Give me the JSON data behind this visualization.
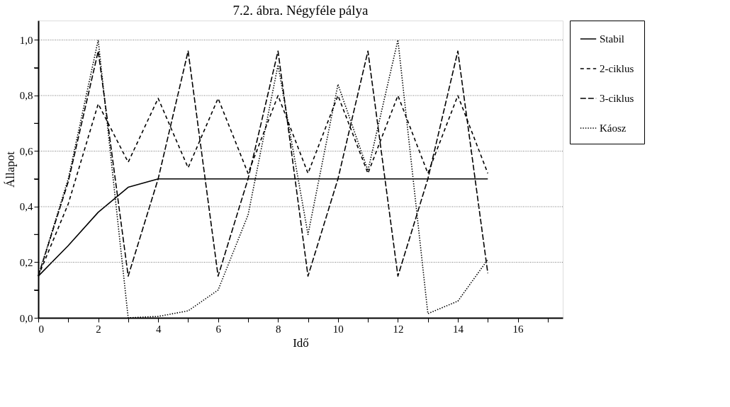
{
  "chart_data": {
    "type": "line",
    "title": "7.2. ábra. Négyféle pálya",
    "xlabel": "Idő",
    "ylabel": "Állapot",
    "x": [
      0,
      1,
      2,
      3,
      4,
      5,
      6,
      7,
      8,
      9,
      10,
      11,
      12,
      13,
      14,
      15
    ],
    "series": [
      {
        "name": "Stabil",
        "color": "#000000",
        "line_style": "solid",
        "values": [
          0.15,
          0.26,
          0.38,
          0.47,
          0.5,
          0.5,
          0.5,
          0.5,
          0.5,
          0.5,
          0.5,
          0.5,
          0.5,
          0.5,
          0.5,
          0.5
        ]
      },
      {
        "name": "2-ciklus",
        "color": "#000000",
        "line_style": "dashed",
        "values": [
          0.15,
          0.41,
          0.77,
          0.56,
          0.79,
          0.54,
          0.79,
          0.52,
          0.8,
          0.52,
          0.8,
          0.52,
          0.8,
          0.52,
          0.8,
          0.52
        ]
      },
      {
        "name": "3-ciklus",
        "color": "#000000",
        "line_style": "dashed",
        "values": [
          0.15,
          0.49,
          0.96,
          0.15,
          0.5,
          0.96,
          0.15,
          0.5,
          0.96,
          0.15,
          0.5,
          0.96,
          0.15,
          0.5,
          0.96,
          0.16
        ]
      },
      {
        "name": "Káosz",
        "color": "#000000",
        "line_style": "dotted",
        "values": [
          0.15,
          0.5,
          1.0,
          0.0,
          0.005,
          0.025,
          0.1,
          0.37,
          0.91,
          0.3,
          0.84,
          0.53,
          1.0,
          0.015,
          0.06,
          0.21
        ]
      }
    ],
    "xlim": [
      0,
      17.5
    ],
    "ylim": [
      0,
      1.07
    ],
    "xticks": [
      0,
      {
        "value": 1,
        "label": null
      },
      2,
      {
        "value": 3,
        "label": null
      },
      4,
      {
        "value": 5,
        "label": null
      },
      6,
      {
        "value": 7,
        "label": null
      },
      8,
      {
        "value": 9,
        "label": null
      },
      10,
      {
        "value": 11,
        "label": null
      },
      12,
      {
        "value": 13,
        "label": null
      },
      14,
      {
        "value": 15,
        "label": null
      },
      16,
      {
        "value": 17,
        "label": null
      }
    ],
    "yticks": [
      {
        "value": 0,
        "label": "0,0"
      },
      {
        "value": 0.1,
        "label": null
      },
      {
        "value": 0.2,
        "label": "0,2"
      },
      {
        "value": 0.3,
        "label": null
      },
      {
        "value": 0.4,
        "label": "0,4"
      },
      {
        "value": 0.5,
        "label": null
      },
      {
        "value": 0.6,
        "label": "0,6"
      },
      {
        "value": 0.7,
        "label": null
      },
      {
        "value": 0.8,
        "label": "0,8"
      },
      {
        "value": 0.9,
        "label": null
      },
      {
        "value": 1.0,
        "label": "1,0"
      }
    ],
    "grid": "y",
    "legend": "right",
    "marker": "none"
  }
}
